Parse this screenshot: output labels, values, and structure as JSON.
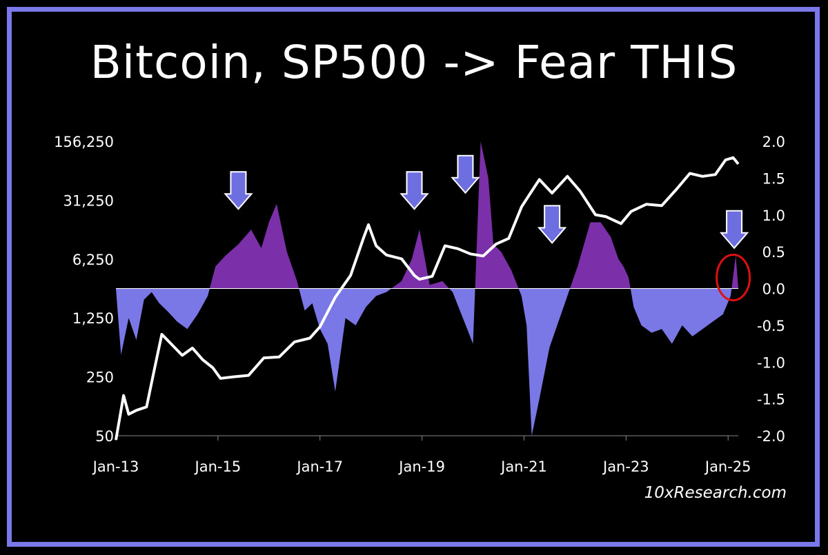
{
  "title": "Bitcoin, SP500 -> Fear THIS",
  "watermark": "10xResearch.com",
  "colors": {
    "border": "#7b78ea",
    "negative_area": "#7a78e6",
    "positive_area": "#7b2fa8",
    "price_line": "#ffffff",
    "arrow": "#6d6fe0",
    "highlight": "#e01010"
  },
  "chart_data": {
    "type": "area",
    "title": "Bitcoin, SP500 -> Fear THIS",
    "x_ticks": [
      "Jan-13",
      "Jan-15",
      "Jan-17",
      "Jan-19",
      "Jan-21",
      "Jan-23",
      "Jan-25"
    ],
    "x_range": [
      2013.0,
      2025.2
    ],
    "left_axis": {
      "scale": "log",
      "ticks": [
        "156,250",
        "31,250",
        "6,250",
        "1,250",
        "250",
        "50"
      ],
      "ylim": [
        50,
        156250
      ]
    },
    "right_axis": {
      "ticks": [
        "2.0",
        "1.5",
        "1.0",
        "0.5",
        "0.0",
        "-0.5",
        "-1.0",
        "-1.5",
        "-2.0"
      ],
      "ylim": [
        -2.0,
        2.0
      ]
    },
    "series": [
      {
        "type": "line",
        "axis": "left",
        "x": [
          2013.0,
          2013.15,
          2013.25,
          2013.4,
          2013.6,
          2013.75,
          2013.9,
          2014.1,
          2014.3,
          2014.5,
          2014.7,
          2014.9,
          2015.05,
          2015.3,
          2015.6,
          2015.9,
          2016.2,
          2016.5,
          2016.8,
          2017.0,
          2017.3,
          2017.6,
          2017.85,
          2017.95,
          2018.1,
          2018.3,
          2018.6,
          2018.85,
          2018.95,
          2019.2,
          2019.45,
          2019.7,
          2019.95,
          2020.2,
          2020.45,
          2020.7,
          2020.95,
          2021.1,
          2021.3,
          2021.55,
          2021.85,
          2022.1,
          2022.4,
          2022.6,
          2022.9,
          2023.1,
          2023.4,
          2023.7,
          2024.0,
          2024.25,
          2024.5,
          2024.75,
          2024.95,
          2025.1,
          2025.2
        ],
        "y": [
          13,
          150,
          90,
          100,
          110,
          300,
          800,
          600,
          450,
          550,
          400,
          320,
          240,
          250,
          260,
          420,
          430,
          650,
          720,
          980,
          2200,
          4000,
          11000,
          16000,
          9000,
          7000,
          6300,
          4000,
          3600,
          3900,
          9000,
          8300,
          7200,
          6800,
          9400,
          11000,
          26000,
          36000,
          55000,
          38000,
          60000,
          40000,
          21000,
          20000,
          16500,
          23000,
          28000,
          27000,
          43000,
          65000,
          60000,
          63000,
          94000,
          100000,
          84000
        ]
      },
      {
        "type": "area",
        "axis": "right",
        "x": [
          2013.0,
          2013.1,
          2013.25,
          2013.4,
          2013.55,
          2013.7,
          2013.85,
          2014.0,
          2014.2,
          2014.4,
          2014.6,
          2014.8,
          2014.95,
          2015.15,
          2015.4,
          2015.65,
          2015.85,
          2016.0,
          2016.15,
          2016.35,
          2016.55,
          2016.7,
          2016.85,
          2017.0,
          2017.15,
          2017.3,
          2017.5,
          2017.7,
          2017.9,
          2018.1,
          2018.3,
          2018.6,
          2018.8,
          2018.95,
          2019.15,
          2019.4,
          2019.6,
          2019.8,
          2020.0,
          2020.15,
          2020.3,
          2020.4,
          2020.55,
          2020.75,
          2020.95,
          2021.05,
          2021.15,
          2021.3,
          2021.5,
          2021.7,
          2021.85,
          2022.05,
          2022.3,
          2022.5,
          2022.7,
          2022.85,
          2022.95,
          2023.05,
          2023.15,
          2023.3,
          2023.5,
          2023.7,
          2023.9,
          2024.1,
          2024.3,
          2024.5,
          2024.7,
          2024.9,
          2025.05,
          2025.15,
          2025.2
        ],
        "y": [
          0.0,
          -0.9,
          -0.4,
          -0.7,
          -0.15,
          -0.05,
          -0.2,
          -0.3,
          -0.45,
          -0.55,
          -0.35,
          -0.1,
          0.3,
          0.45,
          0.6,
          0.8,
          0.55,
          0.9,
          1.15,
          0.5,
          0.1,
          -0.3,
          -0.2,
          -0.55,
          -0.75,
          -1.4,
          -0.4,
          -0.5,
          -0.25,
          -0.1,
          -0.05,
          0.1,
          0.4,
          0.8,
          0.05,
          0.1,
          -0.05,
          -0.4,
          -0.75,
          2.0,
          1.5,
          0.6,
          0.5,
          0.25,
          -0.1,
          -0.5,
          -2.0,
          -1.5,
          -0.8,
          -0.4,
          -0.1,
          0.3,
          0.9,
          0.9,
          0.7,
          0.4,
          0.3,
          0.15,
          -0.25,
          -0.5,
          -0.6,
          -0.55,
          -0.75,
          -0.5,
          -0.65,
          -0.55,
          -0.45,
          -0.35,
          -0.1,
          0.45,
          0.0
        ]
      }
    ],
    "annotations": [
      {
        "type": "arrow",
        "x": 2015.4,
        "y_right": 1.08
      },
      {
        "type": "arrow",
        "x": 2018.85,
        "y_right": 1.08
      },
      {
        "type": "arrow",
        "x": 2019.85,
        "y_right": 1.3
      },
      {
        "type": "arrow",
        "x": 2021.55,
        "y_right": 0.62
      },
      {
        "type": "arrow",
        "x": 2025.12,
        "y_right": 0.55
      },
      {
        "type": "ellipse",
        "x": 2025.1,
        "y_right": 0.15
      }
    ]
  }
}
